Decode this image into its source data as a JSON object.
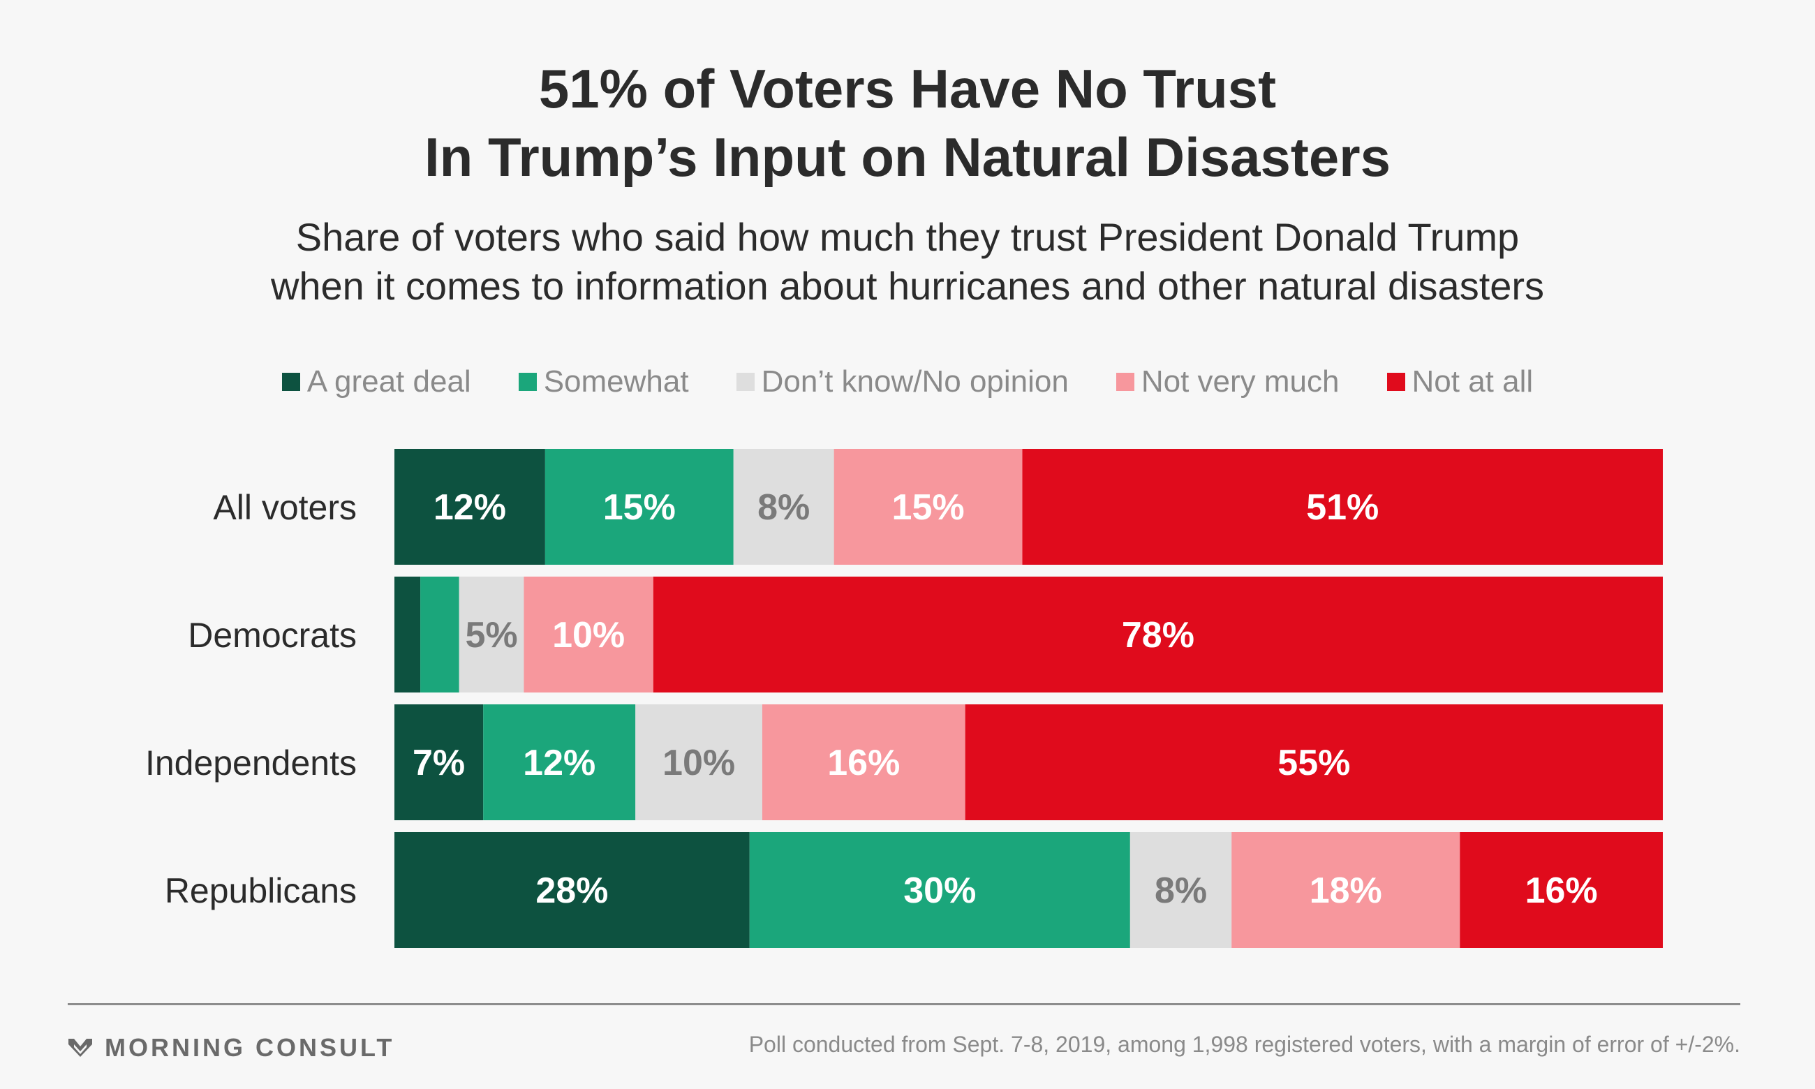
{
  "header": {
    "title_line1": "51% of Voters Have No Trust",
    "title_line2": "In Trump’s Input on Natural Disasters",
    "subtitle_line1": "Share of voters who said how much they trust President Donald Trump",
    "subtitle_line2": "when it comes to information about hurricanes and other natural disasters"
  },
  "footer": {
    "brand": "MORNING CONSULT",
    "brand_icon": "morning-consult-chevron-logo",
    "source": "Poll conducted from Sept. 7-8, 2019, among 1,998 registered voters, with a margin of error of +/-2%."
  },
  "colors": {
    "great_deal": "#0d5240",
    "somewhat": "#1ba67b",
    "dont_know": "#dedede",
    "not_very": "#f7979d",
    "not_at_all": "#e00b1c",
    "label_dark_text": "#7a7a7a",
    "label_light_text": "#ffffff"
  },
  "chart_data": {
    "type": "bar",
    "orientation": "horizontal",
    "stacked": true,
    "legend_position": "top",
    "grid": false,
    "xlim": [
      0,
      100
    ],
    "categories": [
      "All voters",
      "Democrats",
      "Independents",
      "Republicans"
    ],
    "series": [
      {
        "name": "A great deal",
        "color": "#0d5240",
        "values": [
          12,
          2,
          7,
          28
        ],
        "labels": [
          "12%",
          "",
          "7%",
          "28%"
        ]
      },
      {
        "name": "Somewhat",
        "color": "#1ba67b",
        "values": [
          15,
          3,
          12,
          30
        ],
        "labels": [
          "15%",
          "",
          "12%",
          "30%"
        ]
      },
      {
        "name": "Don’t know/No opinion",
        "color": "#dedede",
        "values": [
          8,
          5,
          10,
          8
        ],
        "labels": [
          "8%",
          "5%",
          "10%",
          "8%"
        ]
      },
      {
        "name": "Not very much",
        "color": "#f7979d",
        "values": [
          15,
          10,
          16,
          18
        ],
        "labels": [
          "15%",
          "10%",
          "16%",
          "18%"
        ]
      },
      {
        "name": "Not at all",
        "color": "#e00b1c",
        "values": [
          51,
          78,
          55,
          16
        ],
        "labels": [
          "51%",
          "78%",
          "55%",
          "16%"
        ]
      }
    ]
  }
}
